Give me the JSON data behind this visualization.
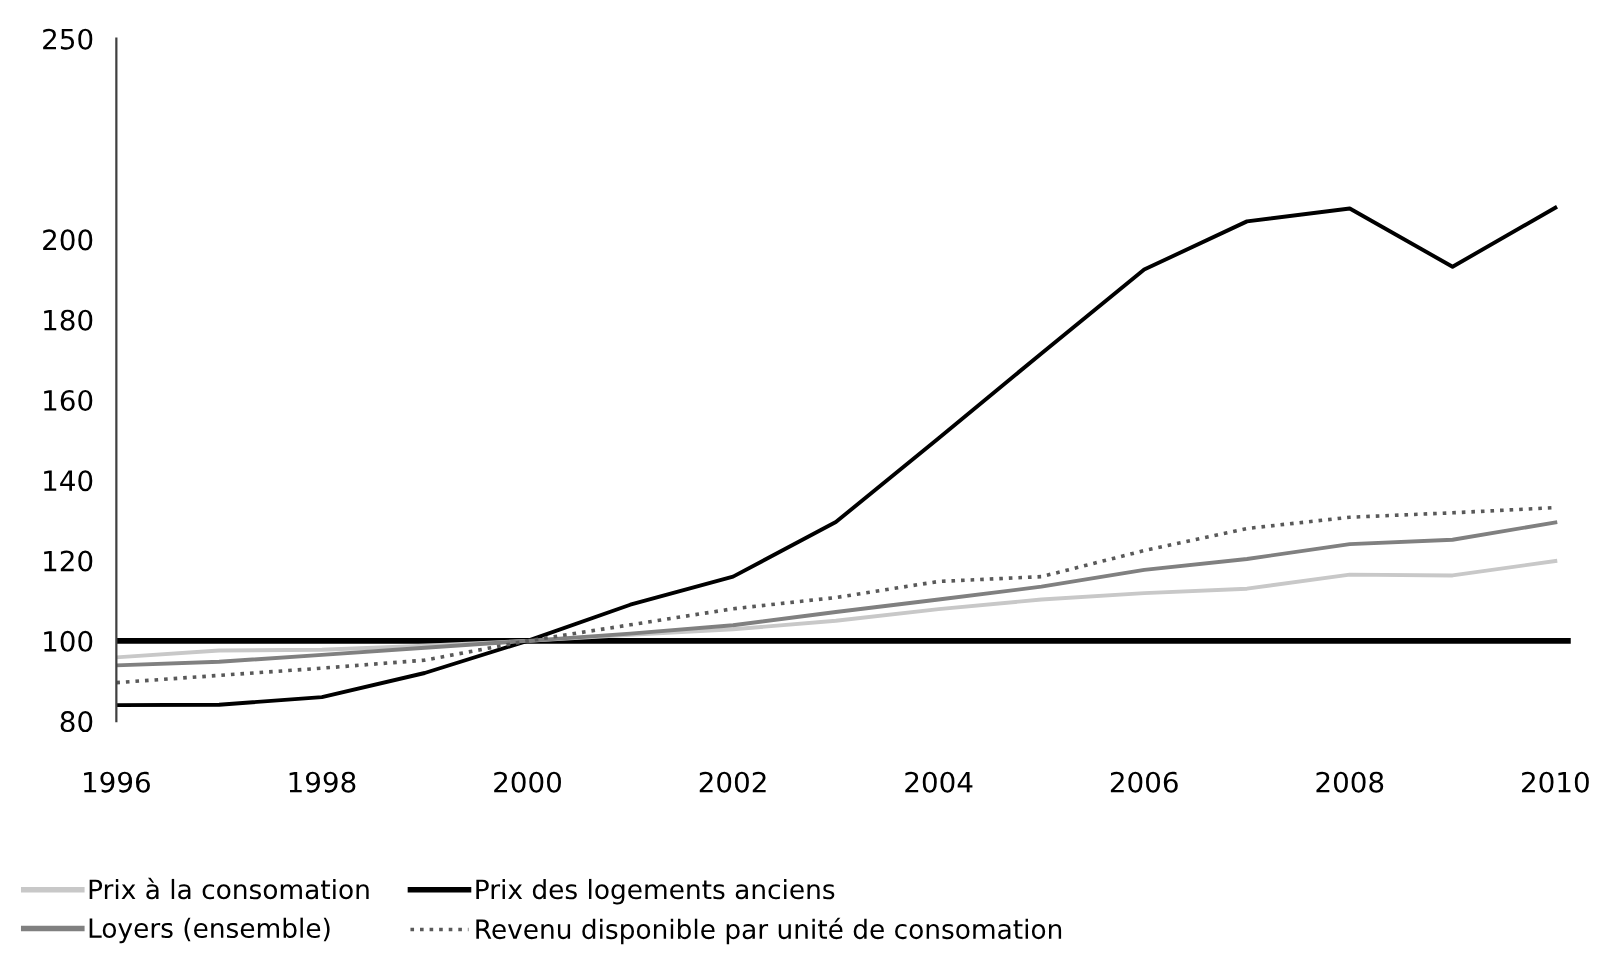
{
  "chart_data": {
    "type": "line",
    "x": [
      1996,
      1997,
      1998,
      1999,
      2000,
      2001,
      2002,
      2003,
      2004,
      2005,
      2006,
      2007,
      2008,
      2009,
      2010
    ],
    "xlim": [
      1996,
      2010.15
    ],
    "xticks": [
      1996,
      1998,
      2000,
      2002,
      2004,
      2006,
      2008,
      2010
    ],
    "ylim": [
      80,
      250
    ],
    "yticks": [
      80,
      100,
      120,
      140,
      160,
      180,
      200,
      250
    ],
    "grid": false,
    "legend": "bottom left",
    "marker": "none",
    "ref_lines": [
      {
        "axis": "y",
        "value": 100,
        "color": "#000000",
        "line_style": "solid"
      }
    ],
    "series": [
      {
        "name": "Prix à la consomation",
        "color": "#c8c8c8",
        "line_style": "solid",
        "values": [
          95.9,
          97.6,
          97.8,
          98.8,
          100,
          101.5,
          102.9,
          105,
          107.9,
          110.3,
          111.9,
          113,
          116.5,
          116.3,
          119.9
        ]
      },
      {
        "name": "Prix des logements anciens",
        "color": "#000000",
        "line_style": "solid",
        "values": [
          84,
          84.1,
          86,
          92,
          100,
          109,
          116,
          129.6,
          150.5,
          171.6,
          192.5,
          204.5,
          207.7,
          193.2,
          207.9
        ]
      },
      {
        "name": "Loyers (ensemble)",
        "color": "#808080",
        "line_style": "solid",
        "values": [
          93.9,
          94.8,
          96.5,
          98.3,
          100,
          101.8,
          103.9,
          107.2,
          110.3,
          113.5,
          117.7,
          120.4,
          124.1,
          125.2,
          129.5
        ]
      },
      {
        "name": "Revenu disponible par unité de consomation",
        "color": "#595959",
        "line_style": "dotted",
        "values": [
          89.6,
          91.4,
          93.2,
          95.2,
          100,
          104,
          108,
          110.8,
          114.8,
          116,
          122.5,
          128,
          130.8,
          131.9,
          133.2
        ]
      }
    ]
  }
}
